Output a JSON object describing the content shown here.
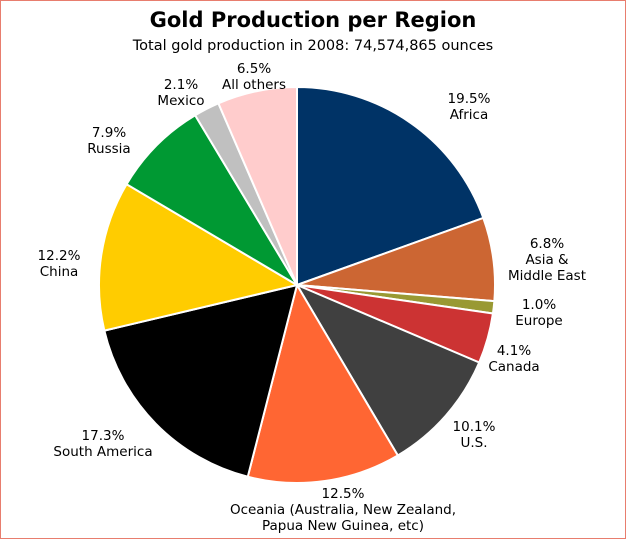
{
  "chart_data": {
    "type": "pie",
    "title": "Gold Production per Region",
    "subtitle": "Total gold production in 2008: 74,574,865 ounces",
    "slices": [
      {
        "label": "Africa",
        "percent_label": "19.5%",
        "value": 19.5,
        "color": "#003366"
      },
      {
        "label": "Asia &\nMiddle East",
        "percent_label": "6.8%",
        "value": 6.8,
        "color": "#cc6633"
      },
      {
        "label": "Europe",
        "percent_label": "1.0%",
        "value": 1.0,
        "color": "#999933"
      },
      {
        "label": "Canada",
        "percent_label": "4.1%",
        "value": 4.1,
        "color": "#cc3333"
      },
      {
        "label": "U.S.",
        "percent_label": "10.1%",
        "value": 10.1,
        "color": "#404040"
      },
      {
        "label": "Oceania (Australia, New Zealand,\nPapua New Guinea, etc)",
        "percent_label": "12.5%",
        "value": 12.5,
        "color": "#ff6633"
      },
      {
        "label": "South America",
        "percent_label": "17.3%",
        "value": 17.3,
        "color": "#000000"
      },
      {
        "label": "China",
        "percent_label": "12.2%",
        "value": 12.2,
        "color": "#ffcc00"
      },
      {
        "label": "Russia",
        "percent_label": "7.9%",
        "value": 7.9,
        "color": "#009933"
      },
      {
        "label": "Mexico",
        "percent_label": "2.1%",
        "value": 2.1,
        "color": "#c0c0c0"
      },
      {
        "label": "All others",
        "percent_label": "6.5%",
        "value": 6.5,
        "color": "#ffcccc"
      }
    ]
  }
}
